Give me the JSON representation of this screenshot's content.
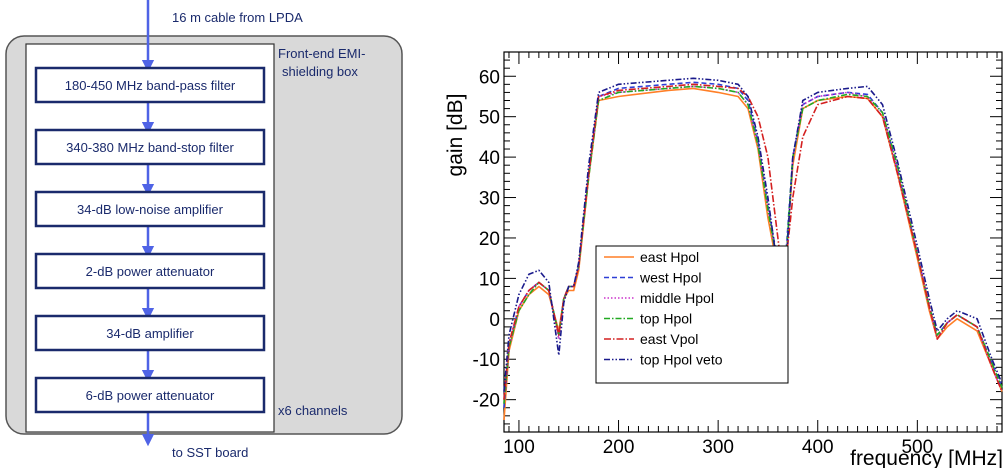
{
  "diagram": {
    "input_label": "16 m cable from LPDA",
    "output_label": "to SST board",
    "box_label_line1": "Front-end EMI-",
    "box_label_line2": "shielding  box",
    "channels_label": "x6 channels",
    "stages": [
      "180-450 MHz band-pass filter",
      "340-380 MHz band-stop filter",
      "34-dB low-noise amplifier",
      "2-dB power attenuator",
      "34-dB amplifier",
      "6-dB power attenuator"
    ],
    "colors": {
      "box_border": "#1a2a6c",
      "arrow": "#4f63e6",
      "outer_fill": "#d9d9d9"
    }
  },
  "chart_data": {
    "type": "line",
    "title": "",
    "xlabel": "frequency [MHz]",
    "ylabel": "gain [dB]",
    "xlim": [
      85,
      585
    ],
    "ylim": [
      -28,
      66
    ],
    "xticks": [
      100,
      200,
      300,
      400,
      500
    ],
    "yticks": [
      -20,
      -10,
      0,
      10,
      20,
      30,
      40,
      50,
      60
    ],
    "grid": false,
    "legend_position": "bottom-left",
    "series": [
      {
        "name": "east Hpol",
        "color": "#ff7f27",
        "dash": "solid",
        "x": [
          85,
          90,
          100,
          110,
          120,
          130,
          140,
          145,
          150,
          155,
          160,
          170,
          180,
          200,
          250,
          275,
          300,
          320,
          330,
          340,
          350,
          360,
          364,
          368,
          375,
          385,
          400,
          430,
          450,
          465,
          480,
          500,
          512,
          520,
          530,
          540,
          560,
          575,
          585
        ],
        "y": [
          -25,
          -8,
          2,
          6,
          8,
          6,
          -3,
          5,
          7,
          7,
          12,
          35,
          54,
          55,
          56.5,
          57,
          56,
          55,
          52,
          42,
          25,
          12,
          10,
          14,
          38,
          52,
          54,
          55,
          54.5,
          50,
          36,
          15,
          2,
          -5,
          -2,
          0,
          -3,
          -12,
          -18
        ]
      },
      {
        "name": "west Hpol",
        "color": "#2e3fd6",
        "dash": "5,3",
        "x": [
          85,
          90,
          100,
          110,
          120,
          130,
          140,
          145,
          150,
          155,
          160,
          170,
          180,
          200,
          250,
          275,
          300,
          320,
          330,
          340,
          350,
          360,
          364,
          368,
          375,
          385,
          400,
          430,
          450,
          465,
          480,
          500,
          512,
          520,
          530,
          540,
          560,
          575,
          585
        ],
        "y": [
          -22,
          -7,
          3,
          7,
          9,
          7,
          -4,
          5,
          8,
          8,
          13,
          36,
          55,
          57,
          58,
          58.5,
          58,
          57,
          54,
          44,
          28,
          14,
          11,
          16,
          40,
          53,
          55,
          56,
          55.5,
          51,
          37,
          16,
          3,
          -4,
          -1,
          1,
          -2,
          -11,
          -17
        ]
      },
      {
        "name": "middle Hpol",
        "color": "#cc33cc",
        "dash": "1.5,2",
        "x": [
          85,
          90,
          100,
          110,
          120,
          130,
          140,
          145,
          150,
          155,
          160,
          170,
          180,
          200,
          250,
          275,
          300,
          320,
          330,
          340,
          350,
          360,
          364,
          368,
          375,
          385,
          400,
          430,
          450,
          465,
          480,
          500,
          512,
          520,
          530,
          540,
          560,
          575,
          585
        ],
        "y": [
          -20,
          -6,
          3,
          7,
          9,
          7,
          -5,
          5,
          8,
          8,
          13,
          36,
          55,
          56,
          57,
          57.5,
          57,
          56,
          53,
          43,
          28,
          12,
          9,
          13,
          40,
          53,
          55,
          56,
          55,
          51,
          37,
          16,
          3,
          -5,
          -1,
          1,
          -2,
          -12,
          -18
        ]
      },
      {
        "name": "top Hpol",
        "color": "#22aa22",
        "dash": "6,2,1.5,2",
        "x": [
          85,
          90,
          100,
          110,
          120,
          130,
          140,
          145,
          150,
          155,
          160,
          170,
          180,
          200,
          250,
          275,
          300,
          320,
          330,
          340,
          350,
          360,
          364,
          368,
          375,
          385,
          400,
          430,
          450,
          465,
          480,
          500,
          512,
          520,
          530,
          540,
          560,
          575,
          585
        ],
        "y": [
          -21,
          -7,
          2,
          6,
          9,
          7,
          -4,
          5,
          8,
          8,
          13,
          35,
          54,
          56,
          57,
          57.5,
          57,
          56,
          53,
          43,
          27,
          13,
          10,
          14,
          40,
          52,
          54,
          55.5,
          55,
          51,
          38,
          16,
          3,
          -4,
          -1,
          1,
          -2,
          -11,
          -17
        ]
      },
      {
        "name": "east Vpol",
        "color": "#d42020",
        "dash": "7,2,1.5,2",
        "x": [
          85,
          90,
          100,
          110,
          120,
          130,
          140,
          145,
          150,
          155,
          160,
          170,
          180,
          200,
          250,
          275,
          300,
          320,
          330,
          340,
          350,
          360,
          364,
          368,
          375,
          385,
          400,
          430,
          450,
          465,
          480,
          500,
          512,
          520,
          530,
          540,
          560,
          575,
          585
        ],
        "y": [
          -20,
          -6,
          3,
          7,
          9,
          7,
          -4,
          5,
          8,
          8,
          13,
          36,
          55,
          56.5,
          57.5,
          58,
          57.5,
          57,
          55,
          50,
          40,
          20,
          12,
          14,
          30,
          45,
          53,
          55,
          54.5,
          50,
          36,
          16,
          3,
          -5,
          -1,
          1,
          -2,
          -12,
          -18
        ]
      },
      {
        "name": "top Hpol veto",
        "color": "#1a1a8c",
        "dash": "6,2,1.5,2,1.5,2",
        "x": [
          85,
          90,
          100,
          110,
          120,
          130,
          140,
          145,
          150,
          155,
          160,
          170,
          180,
          200,
          250,
          275,
          300,
          320,
          330,
          340,
          350,
          360,
          364,
          368,
          375,
          385,
          400,
          430,
          450,
          465,
          480,
          500,
          512,
          520,
          530,
          540,
          560,
          575,
          585
        ],
        "y": [
          -18,
          -4,
          6,
          11,
          12,
          9,
          -9,
          4,
          8,
          8,
          14,
          38,
          56,
          58,
          59,
          59.5,
          59,
          58,
          55,
          45,
          30,
          12,
          7,
          12,
          40,
          54,
          56,
          57,
          57.5,
          53,
          39,
          18,
          5,
          -3,
          0,
          2,
          0,
          -10,
          -16
        ]
      }
    ]
  }
}
